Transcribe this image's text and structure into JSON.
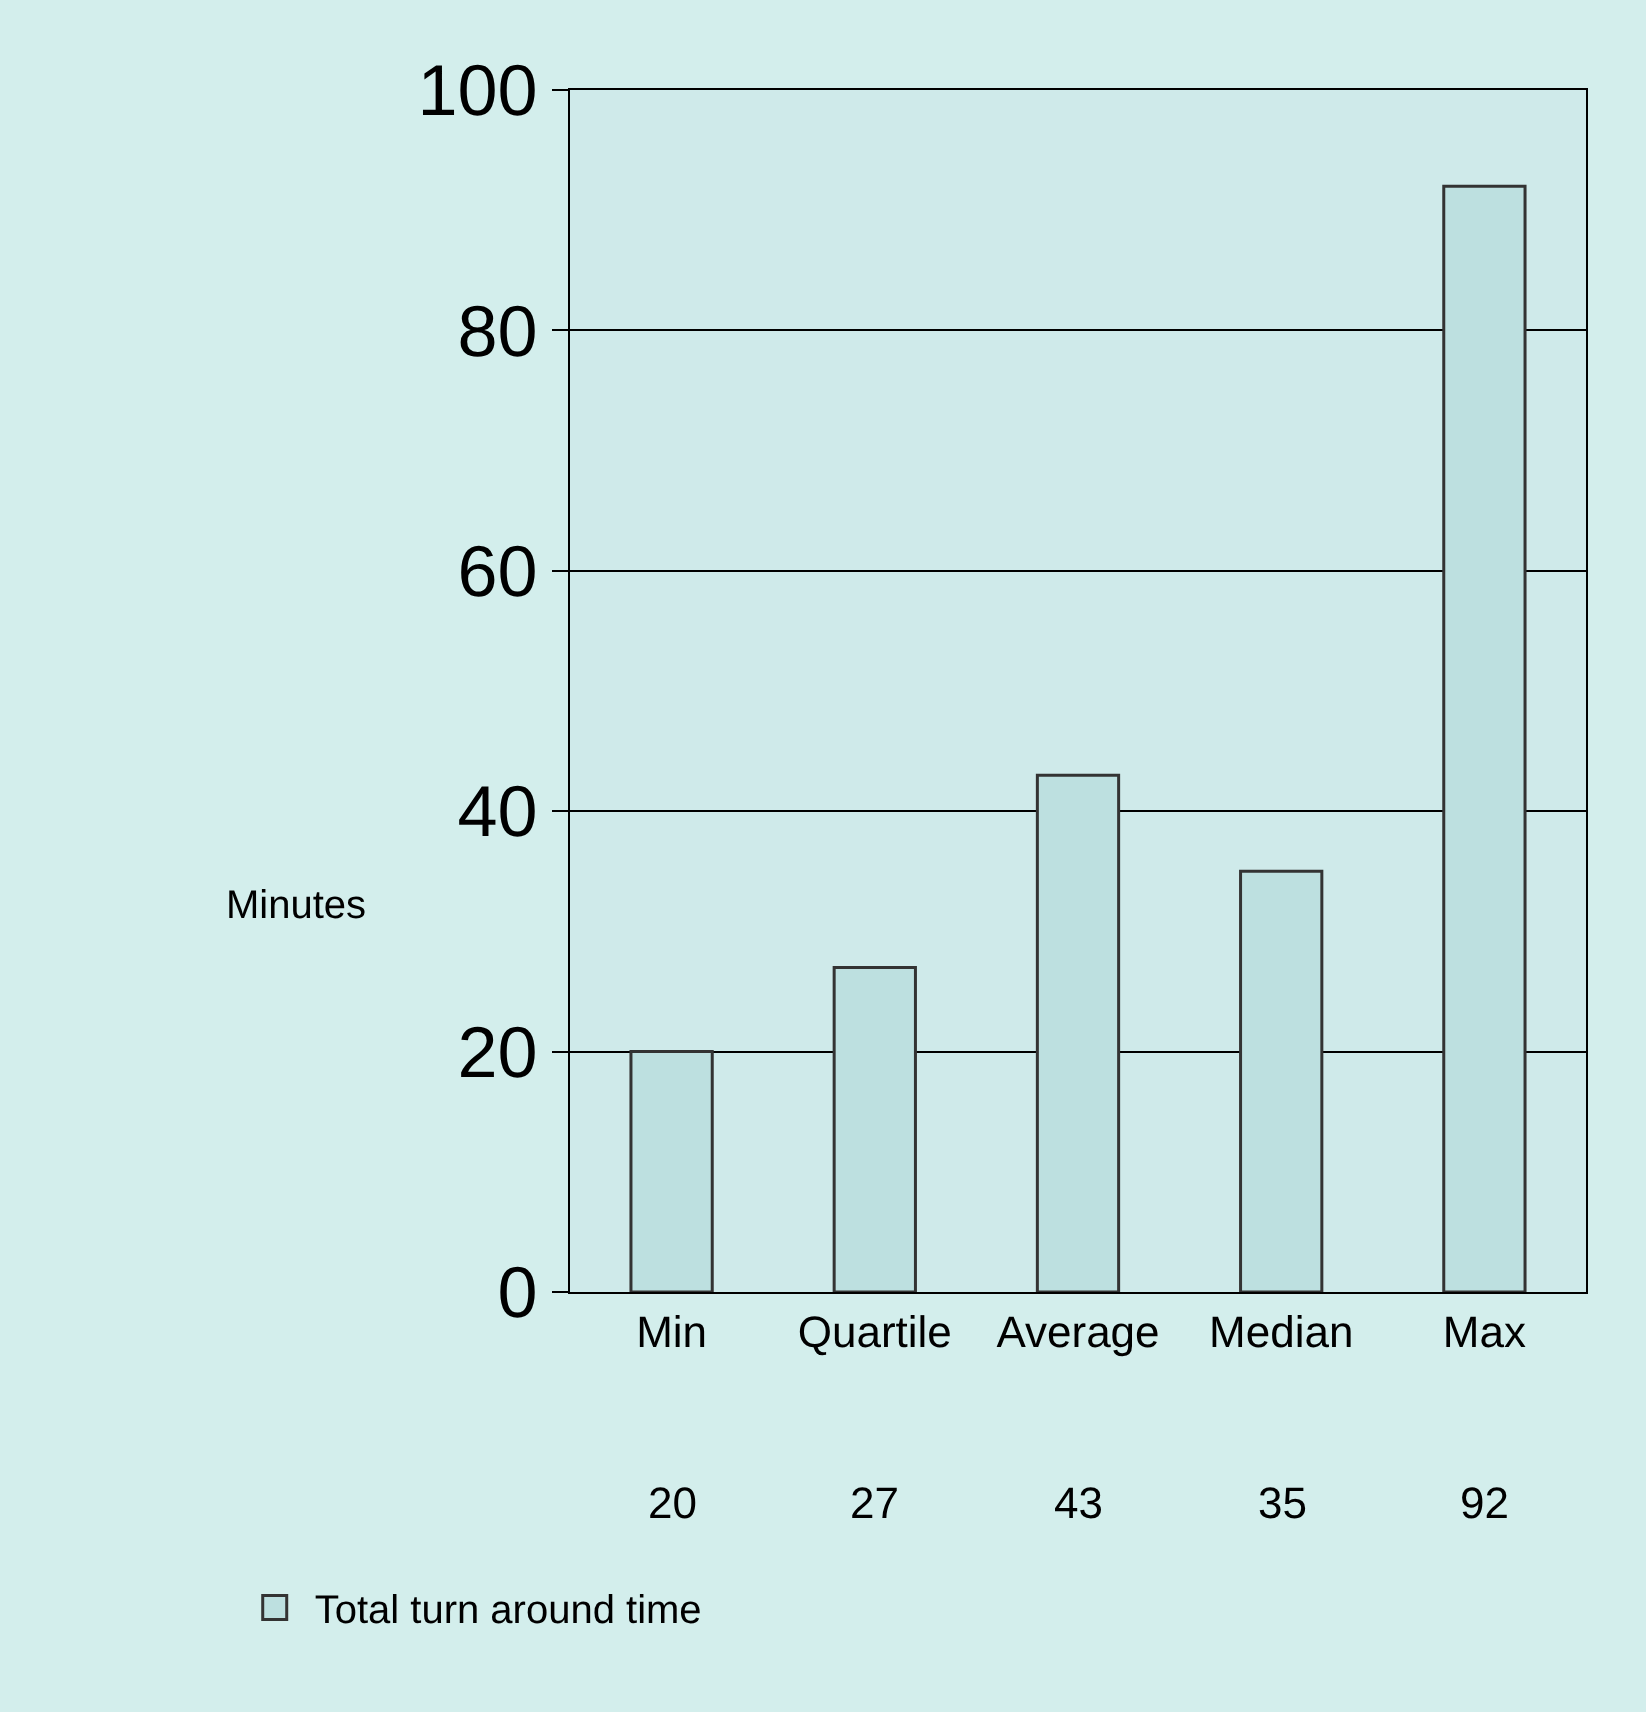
{
  "chart_data": {
    "type": "bar",
    "ylabel": "Minutes",
    "categories": [
      "Min",
      "Quartile",
      "Average",
      "Median",
      "Max"
    ],
    "series": [
      {
        "name": "Total turn around time",
        "color": "#bde0e0",
        "values": [
          20,
          27,
          43,
          35,
          92
        ]
      }
    ],
    "ylim": [
      0,
      100
    ],
    "yticks": [
      0,
      20,
      40,
      60,
      80,
      100
    ],
    "grid": "y",
    "legend": "bottom left",
    "data_labels": true
  }
}
